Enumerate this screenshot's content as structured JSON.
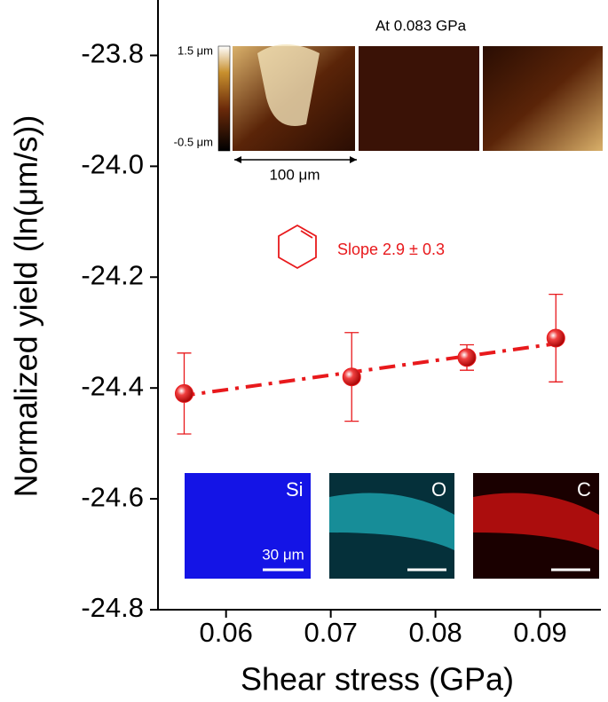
{
  "chart_data": {
    "type": "scatter",
    "x_label": "Shear stress (GPa)",
    "y_label": "Normalized yield (ln(μm/s))",
    "xlim": [
      0.0535,
      0.0958
    ],
    "xticks": [
      0.06,
      0.07,
      0.08,
      0.09
    ],
    "ylim": [
      -24.8,
      -23.7
    ],
    "yticks": [
      -24.8,
      -24.6,
      -24.4,
      -24.2,
      {
        "value": -24.0,
        "label": "-24.0"
      },
      -23.8
    ],
    "series": [
      {
        "color": "#e8191c",
        "x": [
          0.056,
          0.072,
          0.083,
          0.0915
        ],
        "values": [
          -24.41,
          -24.38,
          -24.345,
          -24.31
        ],
        "errors": [
          0.073,
          0.08,
          0.023,
          0.079
        ]
      }
    ],
    "fit_line": {
      "color": "#e8191c",
      "x": [
        0.0555,
        0.0915
      ],
      "values": [
        -24.415,
        -24.32
      ]
    },
    "annotations": {
      "afm_title": "At 0.083 GPa",
      "scale_max": "1.5 μm",
      "scale_min": "-0.5 μm",
      "afm_scale": "100 μm",
      "slope": "Slope 2.9 ± 0.3",
      "si": "Si",
      "o": "O",
      "c": "C",
      "eds_scale": "30 μm"
    }
  }
}
